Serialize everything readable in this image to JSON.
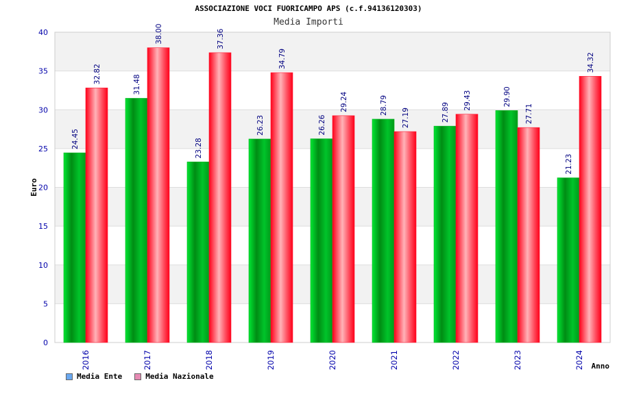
{
  "header": {
    "title": "ASSOCIAZIONE VOCI FUORICAMPO APS (c.f.94136120303)",
    "subtitle": "Media Importi"
  },
  "colors": {
    "series_ente": "#00b31a",
    "series_nazionale": "#ff1a33",
    "legend_ente": "#6aa8f0",
    "legend_nazionale": "#e68ab3",
    "band": "#f2f2f2",
    "axis_text": "#0000aa"
  },
  "legend": [
    {
      "label": "Media Ente"
    },
    {
      "label": "Media Nazionale"
    }
  ],
  "chart_data": {
    "type": "bar",
    "title": "ASSOCIAZIONE VOCI FUORICAMPO APS (c.f.94136120303)",
    "subtitle": "Media Importi",
    "xlabel": "Anno",
    "ylabel": "Euro",
    "ylim": [
      0,
      40
    ],
    "yticks": [
      0,
      5,
      10,
      15,
      20,
      25,
      30,
      35,
      40
    ],
    "grid": "alternating horizontal bands",
    "legend_position": "bottom-left",
    "categories": [
      "2016",
      "2017",
      "2018",
      "2019",
      "2020",
      "2021",
      "2022",
      "2023",
      "2024"
    ],
    "series": [
      {
        "name": "Media Ente",
        "values": [
          24.45,
          31.48,
          23.28,
          26.23,
          26.26,
          28.79,
          27.89,
          29.9,
          21.23
        ],
        "labels": [
          "24.45",
          "31.48",
          "23.28",
          "26.23",
          "26.26",
          "28.79",
          "27.89",
          "29.90",
          "21.23"
        ]
      },
      {
        "name": "Media Nazionale",
        "values": [
          32.82,
          38.0,
          37.36,
          34.79,
          29.24,
          27.19,
          29.43,
          27.71,
          34.32
        ],
        "labels": [
          "32.82",
          "38.00",
          "37.36",
          "34.79",
          "29.24",
          "27.19",
          "29.43",
          "27.71",
          "34.32"
        ]
      }
    ]
  }
}
